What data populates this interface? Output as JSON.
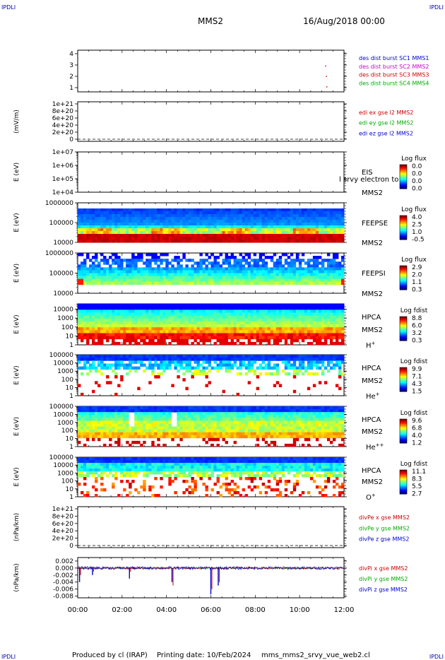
{
  "header": {
    "corner_tl": "IPDLI",
    "corner_tr": "IPDLI",
    "corner_bl": "IPDLI",
    "corner_br": "IPDLI",
    "spacecraft": "MMS2",
    "datetime": "16/Aug/2018 00:00"
  },
  "footer": {
    "produced_by": "Produced by cl (IRAP)",
    "printing_date": "Printing date: 10/Feb/2024",
    "filename": "mms_mms2_srvy_vue_web2.cl"
  },
  "chart_data": [
    {
      "type": "scatter",
      "panel": "burst",
      "yticks": [
        "1",
        "2",
        "3",
        "4"
      ],
      "ylim": [
        0.5,
        4.5
      ],
      "points": [
        {
          "x": "11:10",
          "y": 3
        },
        {
          "x": "11:12",
          "y": 2
        },
        {
          "x": "11:13",
          "y": 1
        }
      ],
      "legend": [
        {
          "label": "des dist burst SC1 MMS1",
          "color": "#0000cc"
        },
        {
          "label": "des dist burst SC2 MMS2",
          "color": "#cc00cc"
        },
        {
          "label": "des dist burst SC3 MMS3",
          "color": "#cc0000"
        },
        {
          "label": "des dist burst SC4 MMS4",
          "color": "#00aa00"
        }
      ]
    },
    {
      "type": "line",
      "panel": "edi",
      "ylabel": "(mV/m)",
      "yticks": [
        "0",
        "2e+20",
        "4e+20",
        "6e+20",
        "8e+20",
        "1e+21"
      ],
      "ylim": [
        0,
        1e+21
      ],
      "series": [],
      "legend": [
        {
          "label": "edi ex gse l2 MMS2",
          "color": "#cc0000"
        },
        {
          "label": "edi ey gse l2 MMS2",
          "color": "#00aa00"
        },
        {
          "label": "edi ez gse l2 MMS2",
          "color": "#0000cc"
        }
      ]
    },
    {
      "type": "heatmap",
      "panel": "eis",
      "ylabel": "E (eV)",
      "yticks": [
        "1e+04",
        "1e+05",
        "1e+06",
        "1e+07"
      ],
      "ylim": [
        10000.0,
        10000000.0
      ],
      "label_main": "EIS",
      "label_sc": "MMS2",
      "overlay_text": "l srvy electron to",
      "colorbar": {
        "title": "Log flux",
        "ticks": [
          "0.0",
          "0.0",
          "0.0",
          "0.0"
        ]
      }
    },
    {
      "type": "heatmap",
      "panel": "feeps_e",
      "ylabel": "E (eV)",
      "yticks": [
        "10000",
        "100000",
        "1000000"
      ],
      "ylim": [
        10000,
        1000000
      ],
      "label_main": "FEEPSE",
      "label_sc": "MMS2",
      "colorbar": {
        "title": "Log flux",
        "ticks": [
          "4.0",
          "2.5",
          "1.0",
          "-0.5"
        ]
      }
    },
    {
      "type": "heatmap",
      "panel": "feeps_i",
      "ylabel": "E (eV)",
      "yticks": [
        "10000",
        "100000",
        "1000000"
      ],
      "ylim": [
        10000,
        1000000
      ],
      "label_main": "FEEPSI",
      "label_sc": "MMS2",
      "colorbar": {
        "title": "Log flux",
        "ticks": [
          "2.9",
          "2.0",
          "1.1",
          "0.3"
        ]
      }
    },
    {
      "type": "heatmap",
      "panel": "hpca_h",
      "ylabel": "E (eV)",
      "yticks": [
        "1",
        "10",
        "100",
        "1000",
        "10000"
      ],
      "ylim": [
        1,
        40000
      ],
      "label_main": "HPCA",
      "label_sc": "MMS2",
      "species": "H",
      "species_sup": "+",
      "colorbar": {
        "title": "Log fdist",
        "ticks": [
          "8.8",
          "6.0",
          "3.2",
          "0.3"
        ]
      }
    },
    {
      "type": "heatmap",
      "panel": "hpca_he1",
      "ylabel": "E (eV)",
      "yticks": [
        "1",
        "10",
        "100",
        "1000",
        "10000",
        "100000"
      ],
      "ylim": [
        1,
        100000
      ],
      "label_main": "HPCA",
      "label_sc": "MMS2",
      "species": "He",
      "species_sup": "+",
      "colorbar": {
        "title": "Log fdist",
        "ticks": [
          "9.9",
          "7.1",
          "4.3",
          "1.5"
        ]
      }
    },
    {
      "type": "heatmap",
      "panel": "hpca_he2",
      "ylabel": "E (eV)",
      "yticks": [
        "1",
        "10",
        "100",
        "1000",
        "10000",
        "100000"
      ],
      "ylim": [
        1,
        100000
      ],
      "label_main": "HPCA",
      "label_sc": "MMS2",
      "species": "He",
      "species_sup": "++",
      "colorbar": {
        "title": "Log fdist",
        "ticks": [
          "9.6",
          "6.8",
          "4.0",
          "1.2"
        ]
      }
    },
    {
      "type": "heatmap",
      "panel": "hpca_o",
      "ylabel": "E (eV)",
      "yticks": [
        "1",
        "10",
        "100",
        "1000",
        "10000",
        "100000"
      ],
      "ylim": [
        1,
        100000
      ],
      "label_main": "HPCA",
      "label_sc": "MMS2",
      "species": "O",
      "species_sup": "+",
      "colorbar": {
        "title": "Log fdist",
        "ticks": [
          "11.1",
          "8.3",
          "5.5",
          "2.7"
        ]
      }
    },
    {
      "type": "line",
      "panel": "divpe",
      "ylabel": "(nPa/km)",
      "yticks": [
        "0",
        "2e+20",
        "4e+20",
        "6e+20",
        "8e+20",
        "1e+21"
      ],
      "ylim": [
        0,
        1e+21
      ],
      "series": [],
      "legend": [
        {
          "label": "divPe x gse MMS2",
          "color": "#cc0000"
        },
        {
          "label": "divPe y gse MMS2",
          "color": "#00aa00"
        },
        {
          "label": "divPe z gse MMS2",
          "color": "#0000cc"
        }
      ]
    },
    {
      "type": "line",
      "panel": "divpi",
      "ylabel": "(nPa/km)",
      "yticks": [
        "0.002",
        "0.000",
        "-0.002",
        "-0.004",
        "-0.006",
        "-0.008"
      ],
      "ylim": [
        -0.0085,
        0.003
      ],
      "events": [
        {
          "t": "00:05",
          "z": -0.004,
          "x": -0.002
        },
        {
          "t": "00:40",
          "z": -0.002,
          "x": -0.001
        },
        {
          "t": "02:20",
          "z": -0.003,
          "x": -0.001
        },
        {
          "t": "04:15",
          "z": -0.004,
          "x": -0.005
        },
        {
          "t": "06:00",
          "z": -0.0075,
          "x": -0.006
        },
        {
          "t": "06:20",
          "z": -0.005,
          "x": -0.004
        }
      ],
      "legend": [
        {
          "label": "divPi x gse MMS2",
          "color": "#cc0000"
        },
        {
          "label": "divPi y gse MMS2",
          "color": "#00aa00"
        },
        {
          "label": "divPi z gse MMS2",
          "color": "#0000cc"
        }
      ]
    }
  ],
  "time_axis": {
    "ticks": [
      "00:00",
      "02:00",
      "04:00",
      "06:00",
      "08:00",
      "10:00",
      "12:00"
    ],
    "range_hours": [
      0,
      12
    ]
  }
}
